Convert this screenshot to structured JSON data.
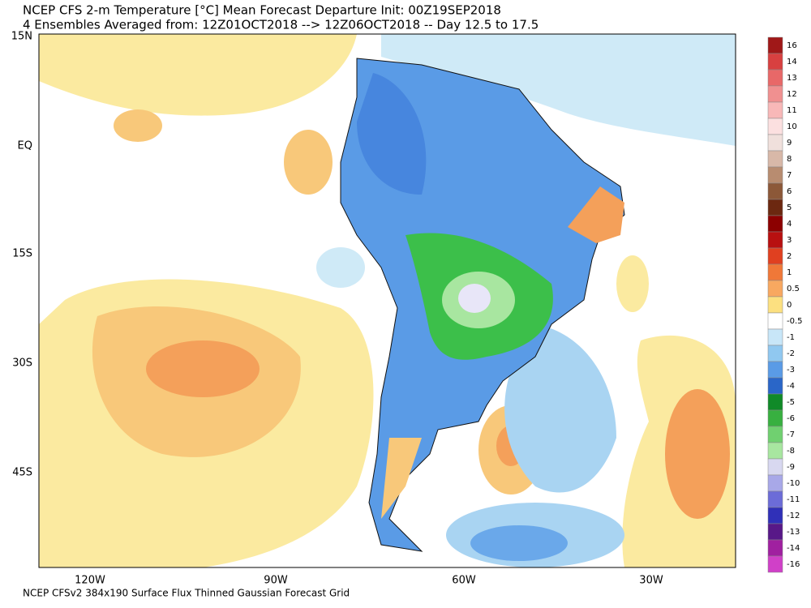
{
  "title": [
    "NCEP CFS 2-m Temperature [°C] Mean Forecast Departure Init: 00Z19SEP2018",
    "4 Ensembles Averaged from: 12Z01OCT2018 --> 12Z06OCT2018 -- Day 12.5 to 17.5"
  ],
  "lat_labels": [
    "15N",
    "EQ",
    "15S",
    "30S",
    "45S"
  ],
  "lon_labels": [
    "120W",
    "90W",
    "60W",
    "30W"
  ],
  "colorbar_labels": [
    16,
    14,
    13,
    12,
    11,
    10,
    9,
    8,
    7,
    6,
    5,
    4,
    3,
    2,
    1,
    0.5,
    0,
    -0.5,
    -1,
    -2,
    -3,
    -4,
    -5,
    -6,
    -7,
    -8,
    -9,
    -10,
    -11,
    -12,
    -13,
    -14,
    -16
  ],
  "footer": "NCEP CFSv2 384x190 Surface Flux Thinned Gaussian Forecast Grid"
}
